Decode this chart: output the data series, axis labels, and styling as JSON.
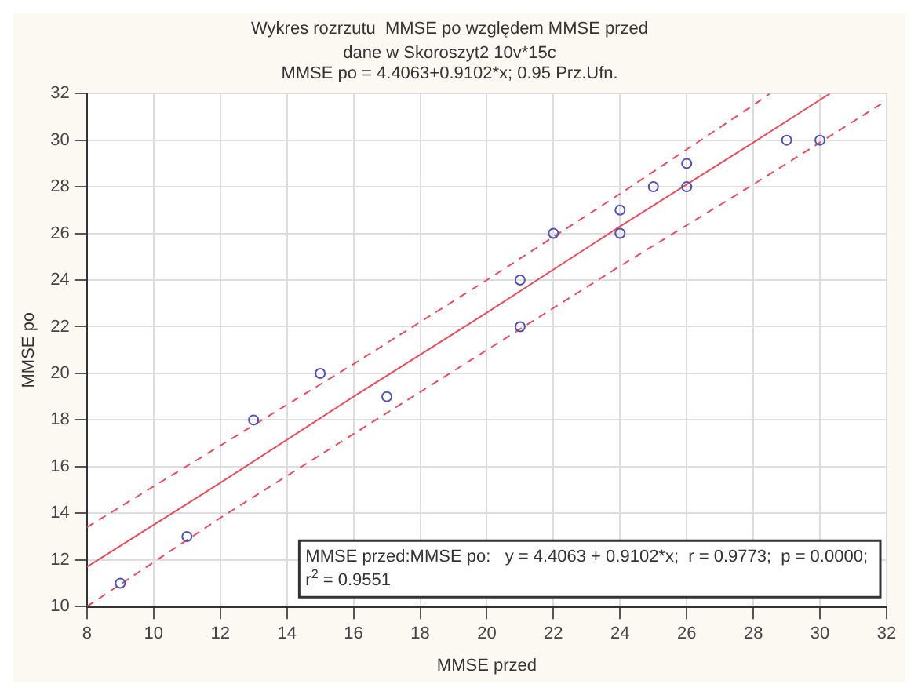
{
  "chart_data": {
    "type": "scatter",
    "title": "Wykres rozrzutu  MMSE po względem MMSE przed",
    "subtitle": "dane w Skoroszyt2 10v*15c",
    "xlabel": "MMSE przed",
    "ylabel": "MMSE po",
    "annotations": [
      "MMSE po = 4.4063+0.9102*x; 0.95 Prz.Ufn.",
      "MMSE przed:MMSE po:   y = 4.4063 + 0.9102*x;  r = 0.9773;  p = 0.0000;",
      "r$^{2}$ = 0.9551"
    ],
    "series": [
      {
        "color": "#5050b0",
        "x": [
          9,
          11,
          13,
          15,
          17,
          21,
          21,
          22,
          24,
          24,
          25,
          26,
          26,
          29,
          30
        ],
        "values": [
          11,
          13,
          18,
          20,
          19,
          22,
          24,
          26,
          26,
          27,
          28,
          28,
          29,
          30,
          30
        ]
      },
      {
        "type": "line",
        "color": "#e05060",
        "marker": "none",
        "line_style": "solid",
        "x": [
          8,
          12,
          16,
          20,
          24,
          28,
          30.3
        ],
        "values": [
          11.7,
          15.3,
          19.0,
          22.6,
          26.3,
          29.9,
          32
        ]
      },
      {
        "type": "line",
        "color": "#e05060",
        "marker": "none",
        "line_style": "dashed",
        "x": [
          8,
          12,
          16,
          20,
          24,
          28,
          28.5
        ],
        "values": [
          13.4,
          16.9,
          20.4,
          24.0,
          27.7,
          31.5,
          32
        ]
      },
      {
        "type": "line",
        "color": "#e05060",
        "marker": "none",
        "line_style": "dashed",
        "x": [
          8,
          12,
          16,
          20,
          24,
          28,
          32
        ],
        "values": [
          10.0,
          13.8,
          17.4,
          21.0,
          24.6,
          28.1,
          31.7
        ]
      }
    ],
    "xlim": [
      8,
      32
    ],
    "xticks": [
      8,
      10,
      12,
      14,
      16,
      18,
      20,
      22,
      24,
      26,
      28,
      30,
      32
    ],
    "ylim": [
      10,
      32
    ],
    "yticks": [
      10,
      12,
      14,
      16,
      18,
      20,
      22,
      24,
      26,
      28,
      30,
      32
    ],
    "grid": true,
    "legend": false,
    "marker": "circle"
  }
}
